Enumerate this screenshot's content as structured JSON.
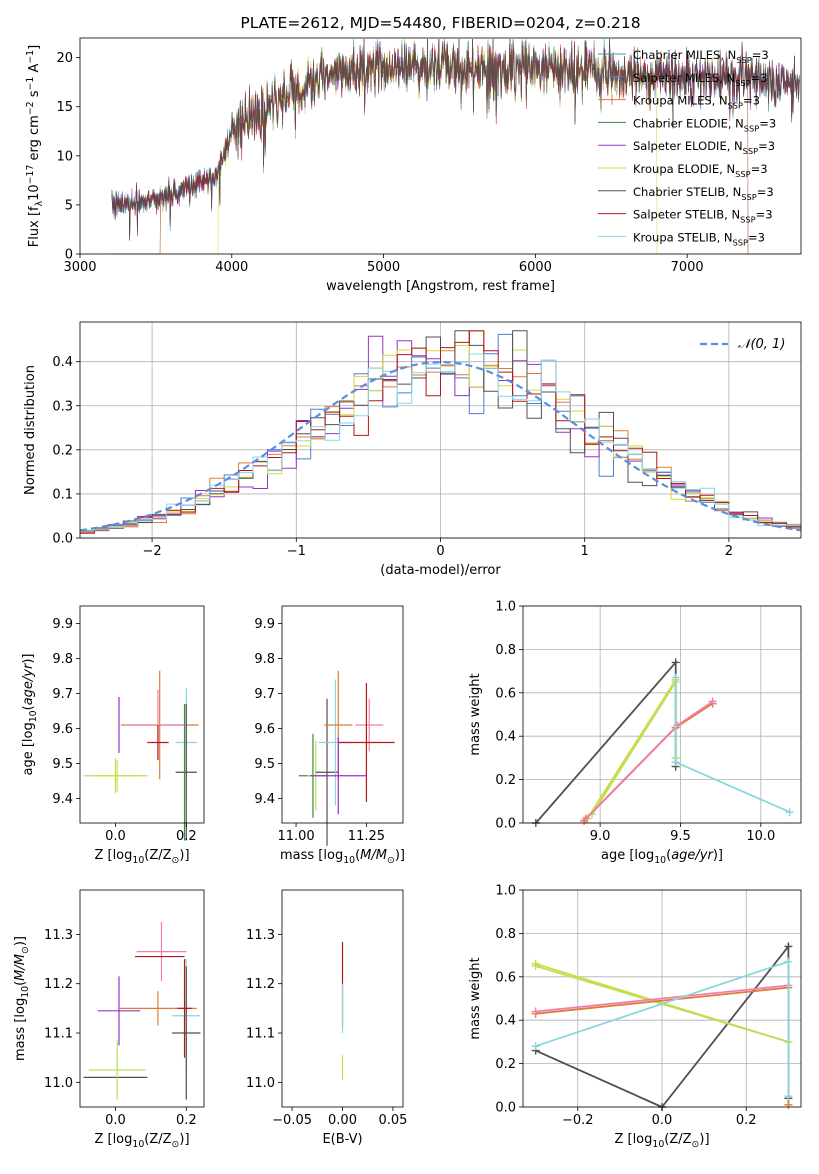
{
  "series_names": [
    "Chabrier MILES, N<sub>SSP</sub>=3",
    "Salpeter MILES, N<sub>SSP</sub>=3",
    "Kroupa MILES, N<sub>SSP</sub>=3",
    "Chabrier ELODIE, N<sub>SSP</sub>=3",
    "Salpeter ELODIE, N<sub>SSP</sub>=3",
    "Kroupa ELODIE, N<sub>SSP</sub>=3",
    "Chabrier STELIB, N<sub>SSP</sub>=3",
    "Salpeter STELIB, N<sub>SSP</sub>=3",
    "Kroupa STELIB, N<sub>SSP</sub>=3"
  ],
  "colors": {
    "Chabrier MILES": "#2ca0b4",
    "Salpeter MILES": "#4a7fd4",
    "Kroupa MILES": "#e07b39",
    "Chabrier ELODIE": "#3b8c3b",
    "Salpeter ELODIE": "#9b30c8",
    "Kroupa ELODIE": "#d8d83a",
    "Chabrier STELIB": "#505050",
    "Salpeter STELIB": "#b01818",
    "Kroupa STELIB": "#8ad6e0",
    "normal_fit": "#5b8ee0",
    "pink": "#f07fb0",
    "lime": "#b8e060"
  },
  "chart_data": [
    {
      "id": "spectrum",
      "type": "line",
      "title": "PLATE=2612, MJD=54480, FIBERID=0204, z=0.218",
      "xlabel": "wavelength [Angstrom, rest frame]",
      "ylabel": "Flux [f<sub>λ</sub>10<sup>−17</sup> erg cm<sup>−2</sup> s<sup>−1</sup> A<sup>−1</sup>]",
      "xlim": [
        3000,
        7750
      ],
      "ylim": [
        0,
        22
      ],
      "xticks": [
        3000,
        4000,
        5000,
        6000,
        7000
      ],
      "yticks": [
        0,
        5,
        10,
        15,
        20
      ],
      "grid": false,
      "legend": "top-right",
      "spectrum_start": 3210,
      "spectrum_end": 7740,
      "model_cutoffs": {
        "Salpeter MILES": [
          3530,
          7400
        ],
        "Kroupa MILES": [
          3530,
          7400
        ],
        "Kroupa ELODIE": [
          3910,
          6800
        ],
        "Chabrier STELIB": [
          3210,
          7740
        ]
      },
      "continuum_anchors": [
        [
          3210,
          5.0
        ],
        [
          3400,
          5.3
        ],
        [
          3600,
          6.0
        ],
        [
          3800,
          7.5
        ],
        [
          3900,
          8.0
        ],
        [
          4000,
          12.5
        ],
        [
          4300,
          15.5
        ],
        [
          4600,
          18.0
        ],
        [
          4900,
          19.0
        ],
        [
          5200,
          19.2
        ],
        [
          5600,
          19.0
        ],
        [
          5900,
          19.0
        ],
        [
          6200,
          18.8
        ],
        [
          6600,
          18.4
        ],
        [
          7000,
          18.2
        ],
        [
          7400,
          18.0
        ],
        [
          7740,
          17.5
        ]
      ]
    },
    {
      "id": "residuals",
      "type": "line",
      "xlabel": "(data-model)/error",
      "ylabel": "Normed distribution",
      "xlim": [
        -2.5,
        2.5
      ],
      "ylim": [
        0,
        0.49
      ],
      "xticks": [
        -2,
        -1,
        0,
        1,
        2
      ],
      "yticks": [
        0.0,
        0.1,
        0.2,
        0.3,
        0.4
      ],
      "grid": true,
      "legend": "top-right",
      "legend_label": "𝒩(0, 1)",
      "bin_width": 0.1,
      "bin_start": -2.5
    },
    {
      "id": "age_vs_Z",
      "type": "scatter",
      "xlabel": "Z [log<sub>10</sub>(Z/Z<sub>⊙</sub>)]",
      "ylabel": "age  [log<sub>10</sub>(<i>age/yr</i>)]",
      "xlim": [
        -0.1,
        0.25
      ],
      "ylim": [
        9.33,
        9.95
      ],
      "xticks": [
        0.0,
        0.2
      ],
      "yticks": [
        9.4,
        9.5,
        9.6,
        9.7,
        9.8,
        9.9
      ],
      "errorbars": [
        {
          "x": 0.0,
          "y": 9.465,
          "xerr": 0.09,
          "yerr": 0.1,
          "color": "lime"
        },
        {
          "x": 0.005,
          "y": 9.465,
          "xerr": 0.06,
          "yerr": 0.09,
          "color": "Kroupa ELODIE"
        },
        {
          "x": 0.01,
          "y": 9.61,
          "xerr": 0.0,
          "yerr": 0.16,
          "color": "Salpeter ELODIE"
        },
        {
          "x": 0.125,
          "y": 9.61,
          "xerr": 0.11,
          "yerr": 0.31,
          "color": "Kroupa MILES"
        },
        {
          "x": 0.12,
          "y": 9.61,
          "xerr": 0.08,
          "yerr": 0.2,
          "color": "pink"
        },
        {
          "x": 0.12,
          "y": 9.56,
          "xerr": 0.03,
          "yerr": 0.1,
          "color": "Salpeter STELIB"
        },
        {
          "x": 0.2,
          "y": 9.56,
          "xerr": 0.03,
          "yerr": 0.31,
          "color": "Kroupa STELIB"
        },
        {
          "x": 0.2,
          "y": 9.475,
          "xerr": 0.03,
          "yerr": 0.39,
          "color": "Chabrier STELIB"
        },
        {
          "x": 0.195,
          "y": 9.475,
          "xerr": 0.0,
          "yerr": 0.39,
          "color": "Chabrier ELODIE"
        }
      ]
    },
    {
      "id": "age_vs_mass",
      "type": "scatter",
      "xlabel": "mass [log<sub>10</sub>(<i>M/M</i><sub>⊙</sub>)]",
      "ylabel": "",
      "xlim": [
        10.95,
        11.38
      ],
      "ylim": [
        9.33,
        9.95
      ],
      "xticks": [
        11.0,
        11.25
      ],
      "yticks": [
        9.4,
        9.5,
        9.6,
        9.7,
        9.8,
        9.9
      ],
      "errorbars": [
        {
          "x": 11.06,
          "y": 9.465,
          "xerr": 0.05,
          "yerr": 0.24,
          "color": "Chabrier ELODIE"
        },
        {
          "x": 11.07,
          "y": 9.465,
          "xerr": 0.03,
          "yerr": 0.2,
          "color": "lime"
        },
        {
          "x": 11.11,
          "y": 9.475,
          "xerr": 0.04,
          "yerr": 0.42,
          "color": "Chabrier STELIB"
        },
        {
          "x": 11.14,
          "y": 9.56,
          "xerr": 0.06,
          "yerr": 0.36,
          "color": "Kroupa STELIB"
        },
        {
          "x": 11.15,
          "y": 9.61,
          "xerr": 0.05,
          "yerr": 0.31,
          "color": "Kroupa MILES"
        },
        {
          "x": 11.26,
          "y": 9.61,
          "xerr": 0.05,
          "yerr": 0.15,
          "color": "pink"
        },
        {
          "x": 11.25,
          "y": 9.56,
          "xerr": 0.1,
          "yerr": 0.34,
          "color": "Salpeter STELIB"
        },
        {
          "x": 11.15,
          "y": 9.465,
          "xerr": 0.1,
          "yerr": 0.22,
          "color": "Salpeter ELODIE"
        }
      ]
    },
    {
      "id": "weight_vs_age",
      "type": "line",
      "xlabel": "age  [log<sub>10</sub>(<i>age/yr</i>)]",
      "ylabel": "mass weight",
      "xlim": [
        8.52,
        10.25
      ],
      "ylim": [
        0,
        1.0
      ],
      "xticks": [
        9.0,
        9.5,
        10.0
      ],
      "yticks": [
        0.0,
        0.2,
        0.4,
        0.6,
        0.8,
        1.0
      ],
      "grid": true,
      "lines": [
        {
          "color": "Chabrier STELIB",
          "x": [
            8.6,
            9.47,
            9.47
          ],
          "y": [
            0.0,
            0.74,
            0.26
          ]
        },
        {
          "color": "Kroupa ELODIE",
          "x": [
            8.92,
            9.47,
            9.47
          ],
          "y": [
            0.02,
            0.66,
            0.3
          ]
        },
        {
          "color": "lime",
          "x": [
            8.95,
            9.47,
            9.47
          ],
          "y": [
            0.04,
            0.65,
            0.3
          ]
        },
        {
          "color": "Kroupa MILES",
          "x": [
            8.9,
            9.47,
            9.7
          ],
          "y": [
            0.01,
            0.44,
            0.55
          ]
        },
        {
          "color": "pink",
          "x": [
            8.91,
            9.48,
            9.7
          ],
          "y": [
            0.02,
            0.45,
            0.56
          ]
        },
        {
          "color": "Kroupa STELIB",
          "x": [
            9.47,
            9.47,
            10.18
          ],
          "y": [
            0.67,
            0.28,
            0.05
          ]
        }
      ]
    },
    {
      "id": "mass_vs_Z",
      "type": "scatter",
      "xlabel": "Z [log<sub>10</sub>(Z/Z<sub>⊙</sub>)]",
      "ylabel": "mass [log<sub>10</sub>(<i>M/M</i><sub>⊙</sub>)]",
      "xlim": [
        -0.1,
        0.25
      ],
      "ylim": [
        10.95,
        11.39
      ],
      "xticks": [
        0.0,
        0.2
      ],
      "yticks": [
        11.0,
        11.1,
        11.2,
        11.3
      ],
      "errorbars": [
        {
          "x": 0.0,
          "y": 11.01,
          "xerr": 0.09,
          "yerr": 0.0,
          "color": "Chabrier STELIB"
        },
        {
          "x": 0.005,
          "y": 11.025,
          "xerr": 0.08,
          "yerr": 0.12,
          "color": "lime"
        },
        {
          "x": 0.01,
          "y": 11.145,
          "xerr": 0.06,
          "yerr": 0.14,
          "color": "Salpeter ELODIE"
        },
        {
          "x": 0.12,
          "y": 11.15,
          "xerr": 0.11,
          "yerr": 0.07,
          "color": "Kroupa MILES"
        },
        {
          "x": 0.13,
          "y": 11.265,
          "xerr": 0.07,
          "yerr": 0.12,
          "color": "pink"
        },
        {
          "x": 0.125,
          "y": 11.255,
          "xerr": 0.07,
          "yerr": 0.0,
          "color": "Salpeter STELIB"
        },
        {
          "x": 0.2,
          "y": 11.135,
          "xerr": 0.04,
          "yerr": 0.23,
          "color": "Kroupa STELIB"
        },
        {
          "x": 0.2,
          "y": 11.1,
          "xerr": 0.04,
          "yerr": 0.27,
          "color": "Chabrier STELIB"
        },
        {
          "x": 0.195,
          "y": 11.15,
          "xerr": 0.02,
          "yerr": 0.2,
          "color": "Salpeter STELIB"
        }
      ]
    },
    {
      "id": "mass_vs_ebv",
      "type": "scatter",
      "xlabel": "E(B-V)",
      "ylabel": "",
      "xlim": [
        -0.06,
        0.06
      ],
      "ylim": [
        10.95,
        11.39
      ],
      "xticks": [
        -0.05,
        0.0,
        0.05
      ],
      "yticks": [
        11.0,
        11.1,
        11.2,
        11.3
      ],
      "errorbars": [
        {
          "x": 0.0,
          "y": 11.2,
          "xerr": 0.0,
          "yerr": 0.17,
          "color": "Salpeter STELIB"
        },
        {
          "x": 0.0,
          "y": 11.15,
          "xerr": 0.0,
          "yerr": 0.1,
          "color": "Kroupa STELIB"
        },
        {
          "x": 0.0,
          "y": 11.03,
          "xerr": 0.0,
          "yerr": 0.05,
          "color": "lime"
        }
      ]
    },
    {
      "id": "weight_vs_Z",
      "type": "line",
      "xlabel": "Z [log<sub>10</sub>(Z/Z<sub>⊙</sub>)]",
      "ylabel": "mass weight",
      "xlim": [
        -0.33,
        0.33
      ],
      "ylim": [
        0,
        1.0
      ],
      "xticks": [
        -0.2,
        0.0,
        0.2
      ],
      "yticks": [
        0.0,
        0.2,
        0.4,
        0.6,
        0.8,
        1.0
      ],
      "grid": true,
      "lines": [
        {
          "color": "Chabrier STELIB",
          "x": [
            -0.3,
            0.0,
            0.3,
            0.3
          ],
          "y": [
            0.26,
            0.0,
            0.74,
            0.04
          ]
        },
        {
          "color": "Kroupa ELODIE",
          "x": [
            -0.3,
            0.3
          ],
          "y": [
            0.66,
            0.3
          ]
        },
        {
          "color": "lime",
          "x": [
            -0.3,
            0.3
          ],
          "y": [
            0.65,
            0.3
          ]
        },
        {
          "color": "Kroupa MILES",
          "x": [
            -0.3,
            0.3,
            0.3
          ],
          "y": [
            0.43,
            0.55,
            0.01
          ]
        },
        {
          "color": "pink",
          "x": [
            -0.3,
            0.3
          ],
          "y": [
            0.44,
            0.56
          ]
        },
        {
          "color": "Kroupa STELIB",
          "x": [
            -0.3,
            0.3,
            0.3
          ],
          "y": [
            0.28,
            0.67,
            0.05
          ]
        }
      ]
    }
  ]
}
